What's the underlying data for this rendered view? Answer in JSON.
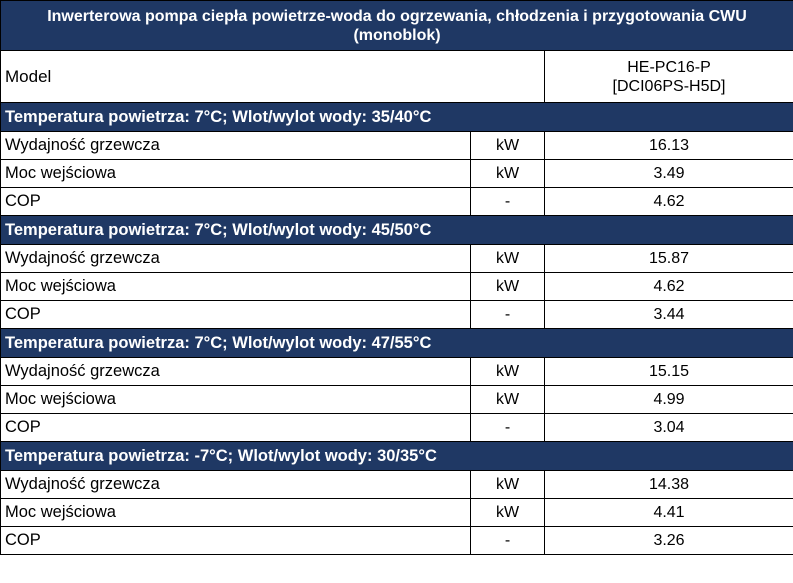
{
  "title": "Inwerterowa pompa ciepła powietrze-woda do ogrzewania, chłodzenia i przygotowania CWU (monoblok)",
  "model": {
    "label": "Model",
    "value_line1": "HE-PC16-P",
    "value_line2": "[DCI06PS-H5D]"
  },
  "sections": [
    {
      "heading": "Temperatura powietrza: 7°C; Wlot/wylot wody: 35/40°C",
      "rows": [
        {
          "label": "Wydajność grzewcza",
          "unit": "kW",
          "value": "16.13"
        },
        {
          "label": "Moc wejściowa",
          "unit": "kW",
          "value": "3.49"
        },
        {
          "label": "COP",
          "unit": "-",
          "value": "4.62"
        }
      ]
    },
    {
      "heading": "Temperatura powietrza: 7°C; Wlot/wylot wody: 45/50°C",
      "rows": [
        {
          "label": "Wydajność grzewcza",
          "unit": "kW",
          "value": "15.87"
        },
        {
          "label": "Moc wejściowa",
          "unit": "kW",
          "value": "4.62"
        },
        {
          "label": "COP",
          "unit": "-",
          "value": "3.44"
        }
      ]
    },
    {
      "heading": "Temperatura powietrza: 7°C; Wlot/wylot wody: 47/55°C",
      "rows": [
        {
          "label": "Wydajność grzewcza",
          "unit": "kW",
          "value": "15.15"
        },
        {
          "label": "Moc wejściowa",
          "unit": "kW",
          "value": "4.99"
        },
        {
          "label": "COP",
          "unit": "-",
          "value": "3.04"
        }
      ]
    },
    {
      "heading": "Temperatura powietrza: -7°C; Wlot/wylot wody: 30/35°C",
      "rows": [
        {
          "label": "Wydajność grzewcza",
          "unit": "kW",
          "value": "14.38"
        },
        {
          "label": "Moc wejściowa",
          "unit": "kW",
          "value": "4.41"
        },
        {
          "label": "COP",
          "unit": "-",
          "value": "3.26"
        }
      ]
    }
  ],
  "colors": {
    "header_bg": "#1f3864",
    "header_text": "#ffffff"
  }
}
